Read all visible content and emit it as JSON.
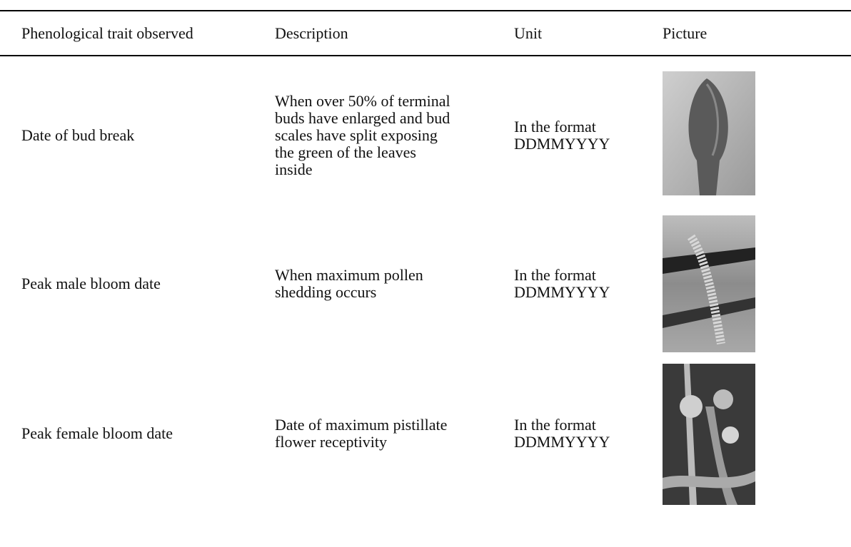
{
  "table": {
    "header": [
      "Phenological trait observed",
      "Description",
      "Unit",
      "Picture"
    ],
    "rows": [
      [
        "Date of bud break",
        "When over 50% of terminal buds have enlarged and bud scales have split exposing the green of the leaves inside",
        "In the format DDMMYYYY"
      ],
      [
        "Peak male bloom date",
        "When maximum pollen shedding occurs",
        "In the format DDMMYYYY"
      ],
      [
        "Peak female bloom date",
        "Date of maximum pistillate flower receptivity",
        "In the format DDMMYYYY"
      ]
    ]
  }
}
